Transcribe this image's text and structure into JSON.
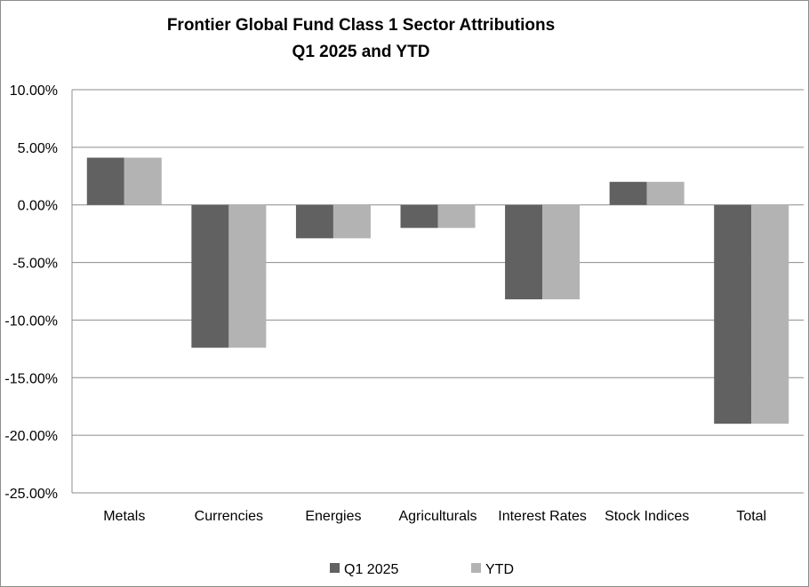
{
  "chart_data": {
    "type": "bar",
    "title": "Frontier Global Fund Class 1 Sector Attributions",
    "subtitle": "Q1 2025 and YTD",
    "xlabel": "",
    "ylabel": "",
    "categories": [
      "Metals",
      "Currencies",
      "Energies",
      "Agriculturals",
      "Interest Rates",
      "Stock Indices",
      "Total"
    ],
    "series": [
      {
        "name": "Q1 2025",
        "color": "#616161",
        "values": [
          4.1,
          -12.4,
          -2.9,
          -2.0,
          -8.2,
          2.0,
          -19.0
        ]
      },
      {
        "name": "YTD",
        "color": "#b3b3b3",
        "values": [
          4.1,
          -12.4,
          -2.9,
          -2.0,
          -8.2,
          2.0,
          -19.0
        ]
      }
    ],
    "ylim": [
      -25,
      10
    ],
    "yticks": [
      10,
      5,
      0,
      -5,
      -10,
      -15,
      -20,
      -25
    ],
    "ytick_labels": [
      "10.00%",
      "5.00%",
      "0.00%",
      "-5.00%",
      "-10.00%",
      "-15.00%",
      "-20.00%",
      "-25.00%"
    ],
    "grid": true,
    "legend_position": "bottom"
  }
}
